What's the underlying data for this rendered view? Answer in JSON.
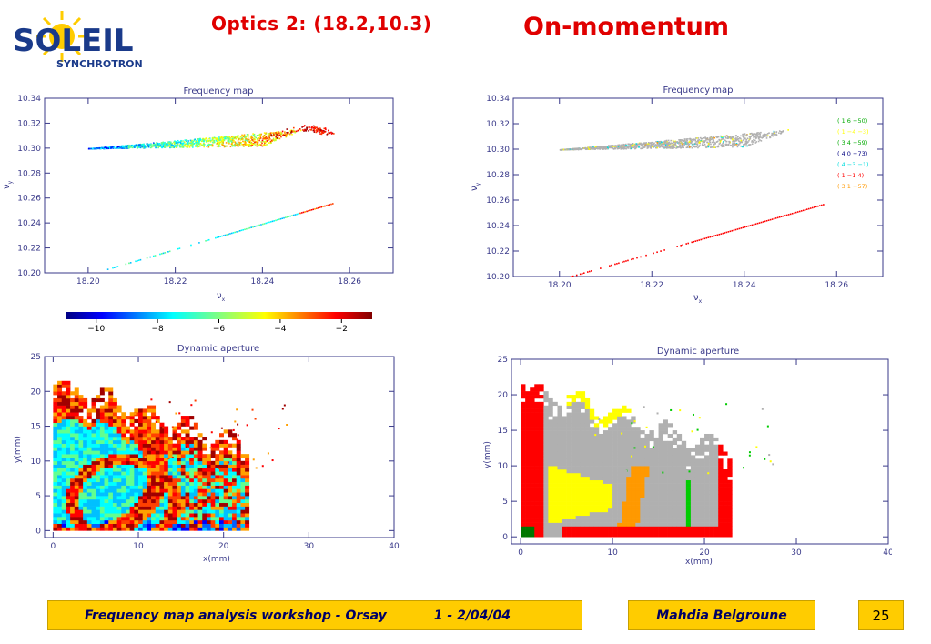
{
  "header": {
    "title_left": "Optics 2: (18.2,10.3)",
    "title_right": "On-momentum",
    "logo_main": "SOLEIL",
    "logo_sub": "SYNCHROTRON"
  },
  "footer": {
    "workshop": "Frequency map analysis workshop - Orsay",
    "dates": "1 - 2/04/04",
    "author": "Mahdia Belgroune",
    "page": "25"
  },
  "colors": {
    "footer_bg": "#ffcc00",
    "title": "#e00000",
    "axis": "#3a3a8a"
  },
  "colorbar": {
    "min": -11,
    "max": -1,
    "ticks": [
      "−10",
      "−8",
      "−6",
      "−4",
      "−2"
    ],
    "tick_values": [
      -10,
      -8,
      -6,
      -4,
      -2
    ]
  },
  "chart_data": [
    {
      "id": "fmap-left",
      "type": "scatter",
      "title": "Frequency map",
      "xlabel": "ν",
      "xlabel_sub": "x",
      "ylabel": "ν",
      "ylabel_sub": "y",
      "xlim": [
        18.19,
        18.27
      ],
      "ylim": [
        10.2,
        10.34
      ],
      "xticks": [
        "18.20",
        "18.22",
        "18.24",
        "18.26"
      ],
      "xtick_values": [
        18.2,
        18.22,
        18.24,
        18.26
      ],
      "yticks": [
        "10.20",
        "10.22",
        "10.24",
        "10.26",
        "10.28",
        "10.30",
        "10.32",
        "10.34"
      ],
      "ytick_values": [
        10.2,
        10.22,
        10.24,
        10.26,
        10.28,
        10.3,
        10.32,
        10.34
      ],
      "upper_wedge": {
        "tip": [
          18.2,
          10.3
        ],
        "end_top": [
          18.25,
          10.316
        ],
        "end_bottom": [
          18.24,
          10.302
        ]
      },
      "upper_tail": [
        [
          18.24,
          10.308
        ],
        [
          18.25,
          10.317
        ],
        [
          18.253,
          10.315
        ],
        [
          18.255,
          10.312
        ]
      ],
      "lower_line": {
        "start": [
          18.204,
          10.203
        ],
        "end": [
          18.256,
          10.256
        ]
      },
      "colorscale": "diffusion"
    },
    {
      "id": "fmap-right",
      "type": "scatter",
      "title": "Frequency map",
      "xlabel": "ν",
      "xlabel_sub": "x",
      "ylabel": "ν",
      "ylabel_sub": "y",
      "xlim": [
        18.19,
        18.27
      ],
      "ylim": [
        10.2,
        10.34
      ],
      "xticks": [
        "18.20",
        "18.22",
        "18.24",
        "18.26"
      ],
      "xtick_values": [
        18.2,
        18.22,
        18.24,
        18.26
      ],
      "yticks": [
        "10.20",
        "10.22",
        "10.24",
        "10.26",
        "10.28",
        "10.30",
        "10.32",
        "10.34"
      ],
      "ytick_values": [
        10.2,
        10.22,
        10.24,
        10.26,
        10.28,
        10.3,
        10.32,
        10.34
      ],
      "upper_wedge": {
        "tip": [
          18.2,
          10.3
        ],
        "end_top": [
          18.25,
          10.316
        ],
        "end_bottom": [
          18.24,
          10.302
        ]
      },
      "lower_line": {
        "start": [
          18.202,
          10.2
        ],
        "end": [
          18.257,
          10.257
        ]
      },
      "legend": [
        {
          "label": "(  1   6  −50)",
          "color": "#00aa00"
        },
        {
          "label": "(  1  −4  −3)",
          "color": "#ffff00"
        },
        {
          "label": "(  3   4  −59)",
          "color": "#00aa00"
        },
        {
          "label": "(  4   0  −73)",
          "color": "#000080"
        },
        {
          "label": "(  4  −3  −1)",
          "color": "#00dddd"
        },
        {
          "label": "(  1  −1   4)",
          "color": "#ff0000"
        },
        {
          "label": "(  3   1  −57)",
          "color": "#ff9900"
        }
      ]
    },
    {
      "id": "da-left",
      "type": "heatmap",
      "title": "Dynamic aperture",
      "xlabel": "x(mm)",
      "ylabel": "y(mm)",
      "xlim": [
        -1,
        40
      ],
      "ylim": [
        -1,
        25
      ],
      "xticks": [
        "0",
        "10",
        "20",
        "30",
        "40"
      ],
      "xtick_values": [
        0,
        10,
        20,
        30,
        40
      ],
      "yticks": [
        "0",
        "5",
        "10",
        "15",
        "20",
        "25"
      ],
      "ytick_values": [
        0,
        5,
        10,
        15,
        20,
        25
      ],
      "extent_x_mm": 23,
      "extent_y_mm": 21.5
    },
    {
      "id": "da-right",
      "type": "heatmap",
      "title": "Dynamic aperture",
      "xlabel": "x(mm)",
      "ylabel": "y(mm)",
      "xlim": [
        -1,
        40
      ],
      "ylim": [
        -1,
        25
      ],
      "xticks": [
        "0",
        "10",
        "20",
        "30",
        "40"
      ],
      "xtick_values": [
        0,
        10,
        20,
        30,
        40
      ],
      "yticks": [
        "0",
        "5",
        "10",
        "15",
        "20",
        "25"
      ],
      "ytick_values": [
        0,
        5,
        10,
        15,
        20,
        25
      ],
      "extent_x_mm": 23,
      "extent_y_mm": 21.5
    }
  ]
}
